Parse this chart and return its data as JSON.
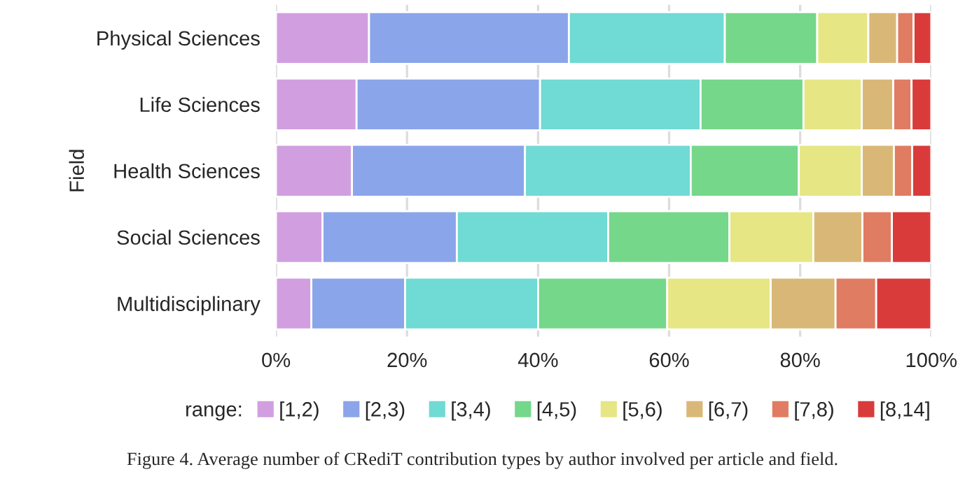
{
  "chart_data": {
    "type": "bar",
    "orientation": "horizontal",
    "stacked": true,
    "ylabel": "Field",
    "legend_title": "range:",
    "legend": "bottom",
    "grid": "x",
    "categories": [
      "Physical Sciences",
      "Life Sciences",
      "Health Sciences",
      "Social Sciences",
      "Multidisciplinary"
    ],
    "xlim": [
      0,
      100
    ],
    "xticks": [
      {
        "value": 0,
        "label": "0%"
      },
      {
        "value": 20,
        "label": "20%"
      },
      {
        "value": 40,
        "label": "40%"
      },
      {
        "value": 60,
        "label": "60%"
      },
      {
        "value": 80,
        "label": "80%"
      },
      {
        "value": 100,
        "label": "100%"
      }
    ],
    "series": [
      {
        "name": "[1,2)",
        "color": "#d19fe0",
        "values": [
          14.2,
          12.3,
          11.6,
          7.1,
          5.4
        ]
      },
      {
        "name": "[2,3)",
        "color": "#8aa5ea",
        "values": [
          30.5,
          28.0,
          26.4,
          20.5,
          14.3
        ]
      },
      {
        "name": "[3,4)",
        "color": "#70dad4",
        "values": [
          23.8,
          24.5,
          25.3,
          23.1,
          20.3
        ]
      },
      {
        "name": "[4,5)",
        "color": "#75d78a",
        "values": [
          14.1,
          15.7,
          16.5,
          18.5,
          19.7
        ]
      },
      {
        "name": "[5,6)",
        "color": "#e6e685",
        "values": [
          7.8,
          8.9,
          9.6,
          12.8,
          15.8
        ]
      },
      {
        "name": "[6,7)",
        "color": "#d9b877",
        "values": [
          4.4,
          4.8,
          4.9,
          7.5,
          9.9
        ]
      },
      {
        "name": "[7,8)",
        "color": "#e07c62",
        "values": [
          2.5,
          2.8,
          2.8,
          4.5,
          6.2
        ]
      },
      {
        "name": "[8,14]",
        "color": "#d93b3b",
        "values": [
          2.7,
          3.0,
          2.9,
          6.0,
          8.4
        ]
      }
    ],
    "annotations": [
      "Figure 4. Average number of CRediT contribution types by author involved per article and field."
    ]
  }
}
